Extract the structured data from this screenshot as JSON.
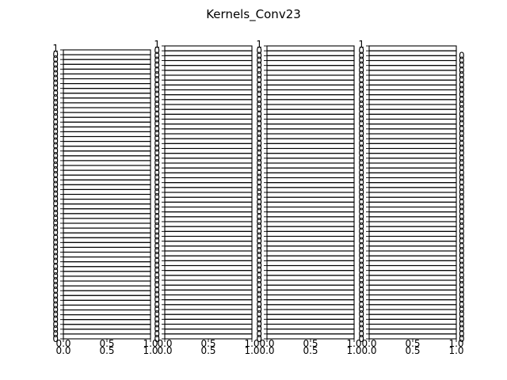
{
  "figure": {
    "title": "Kernels_Conv23",
    "background": "#ffffff",
    "line_color": "#000000"
  },
  "chart_data": {
    "type": "line",
    "title": "Kernels_Conv23",
    "layout": "4 columns of stacked, overlapping subplots (many panels per column)",
    "columns": 4,
    "panels_per_column_estimated": 60,
    "xlim": [
      0.0,
      1.0
    ],
    "x_ticks": [
      "0.0",
      "0.5",
      "1.0"
    ],
    "ylim": [
      0,
      1
    ],
    "y_ticks": [
      "0",
      "1"
    ],
    "grid": false,
    "legend": "none",
    "series": []
  }
}
